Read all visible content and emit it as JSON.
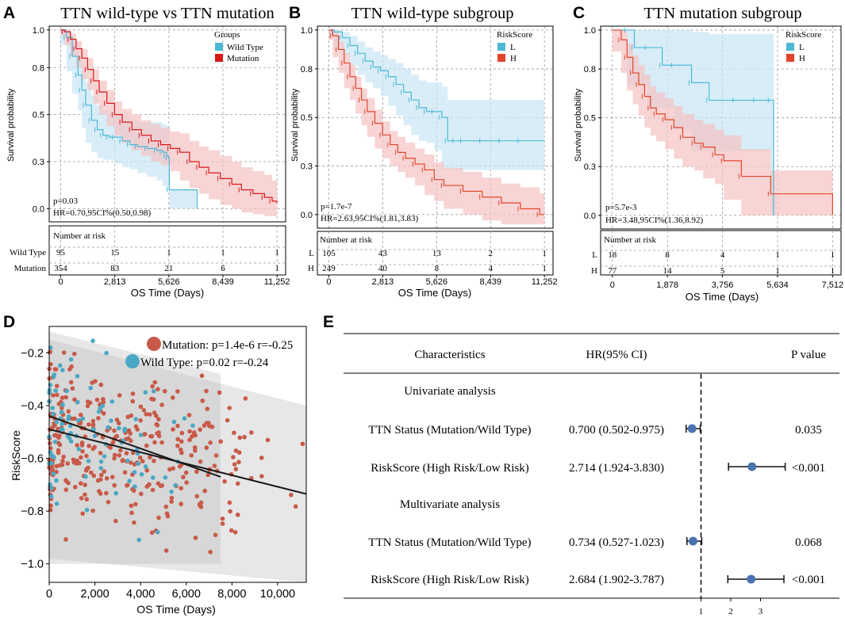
{
  "colors": {
    "wild": "#4db8d6",
    "mutation": "#d71a1a",
    "high": "#e0452c",
    "band_blue": "#c7e6f3",
    "band_red": "#f5c2c2",
    "scatter_red": "#c85a49",
    "scatter_blue": "#4ba8c4",
    "forest_dot": "#4a72b0"
  },
  "chart_data": [
    {
      "panel": "A",
      "type": "line",
      "title": "TTN wild-type vs TTN mutation",
      "ylabel": "Survival probability",
      "xlabel": "OS Time (Days)",
      "yticks": [
        "1.0",
        "0.8",
        "0.5",
        "0.3",
        "0.0"
      ],
      "ytick_values": [
        1.0,
        0.8,
        0.55,
        0.3,
        0.05
      ],
      "xticks": [
        "0",
        "2,813",
        "5,626",
        "8,439",
        "11,252"
      ],
      "xtick_values": [
        0,
        2813,
        5626,
        8439,
        11252
      ],
      "xlim": [
        -600,
        11700
      ],
      "ylim": [
        -0.02,
        1.02
      ],
      "legend_title": "Groups",
      "annot_p": "p=0.03",
      "annot_hr": "HR=0.70,95CI%(0.50,0.98)",
      "risk_title": "Number at risk",
      "series": [
        {
          "name": "Wild Type",
          "risk_label": "Wild Type",
          "color_key": "wild",
          "band_key": "band_blue",
          "x": [
            0,
            300,
            600,
            900,
            1100,
            1300,
            1600,
            1900,
            2200,
            2500,
            2800,
            3200,
            3600,
            4000,
            4500,
            5000,
            5300,
            5500,
            5600,
            5650,
            7100
          ],
          "y": [
            1.0,
            0.96,
            0.86,
            0.76,
            0.68,
            0.6,
            0.52,
            0.47,
            0.44,
            0.43,
            0.43,
            0.41,
            0.39,
            0.38,
            0.37,
            0.36,
            0.35,
            0.33,
            0.32,
            0.15,
            0.05
          ],
          "lo": [
            1.0,
            0.92,
            0.78,
            0.66,
            0.57,
            0.48,
            0.4,
            0.35,
            0.32,
            0.31,
            0.31,
            0.29,
            0.27,
            0.26,
            0.24,
            0.22,
            0.2,
            0.17,
            0.15,
            0.15,
            0.05
          ],
          "hi": [
            1.0,
            0.99,
            0.93,
            0.86,
            0.79,
            0.72,
            0.65,
            0.6,
            0.57,
            0.56,
            0.56,
            0.54,
            0.52,
            0.51,
            0.51,
            0.51,
            0.5,
            0.49,
            0.48,
            0.15,
            0.05
          ],
          "risk": [
            "95",
            "15",
            "1",
            "1",
            "1"
          ]
        },
        {
          "name": "Mutation",
          "risk_label": "Mutation",
          "color_key": "mutation",
          "band_key": "band_red",
          "x": [
            0,
            200,
            500,
            800,
            1100,
            1400,
            1700,
            2000,
            2400,
            2800,
            3200,
            3700,
            4200,
            4700,
            5200,
            5700,
            6200,
            6700,
            7200,
            7700,
            8300,
            8900,
            9400,
            10000,
            10600,
            11000,
            11252
          ],
          "y": [
            1.0,
            0.99,
            0.95,
            0.9,
            0.85,
            0.79,
            0.73,
            0.67,
            0.61,
            0.55,
            0.51,
            0.47,
            0.44,
            0.41,
            0.39,
            0.37,
            0.35,
            0.3,
            0.27,
            0.24,
            0.21,
            0.18,
            0.15,
            0.13,
            0.11,
            0.09,
            0.08
          ],
          "lo": [
            1.0,
            0.97,
            0.92,
            0.86,
            0.8,
            0.74,
            0.68,
            0.61,
            0.55,
            0.49,
            0.44,
            0.4,
            0.36,
            0.33,
            0.3,
            0.28,
            0.25,
            0.2,
            0.16,
            0.13,
            0.1,
            0.07,
            0.05,
            0.03,
            0.02,
            0.01,
            0.01
          ],
          "hi": [
            1.0,
            1.0,
            0.98,
            0.94,
            0.9,
            0.85,
            0.79,
            0.73,
            0.68,
            0.62,
            0.58,
            0.55,
            0.52,
            0.5,
            0.48,
            0.46,
            0.45,
            0.41,
            0.38,
            0.36,
            0.33,
            0.3,
            0.27,
            0.25,
            0.23,
            0.2,
            0.19
          ],
          "risk": [
            "354",
            "83",
            "21",
            "6",
            "1"
          ]
        }
      ]
    },
    {
      "panel": "B",
      "type": "line",
      "title": "TTN wild-type subgroup",
      "ylabel": "Survival probability",
      "xlabel": "OS Time (Days)",
      "yticks": [
        "1.0",
        "0.8",
        "0.5",
        "0.3",
        "0.0"
      ],
      "ytick_values": [
        1.0,
        0.8,
        0.55,
        0.3,
        0.05
      ],
      "xticks": [
        "0",
        "2,813",
        "5,626",
        "8,439",
        "11,252"
      ],
      "xtick_values": [
        0,
        2813,
        5626,
        8439,
        11252
      ],
      "xlim": [
        -600,
        11700
      ],
      "ylim": [
        -0.02,
        1.02
      ],
      "legend_title": "RiskScore",
      "annot_p": "p=1.7e-7",
      "annot_hr": "HR=2.63,95CI%(1.81,3.83)",
      "risk_title": "Number at risk",
      "series": [
        {
          "name": "L",
          "risk_label": "L",
          "color_key": "wild",
          "band_key": "band_blue",
          "x": [
            0,
            300,
            700,
            1100,
            1500,
            1900,
            2300,
            2700,
            3100,
            3500,
            3900,
            4300,
            4700,
            5100,
            5500,
            5900,
            6200,
            6600,
            7000,
            8000,
            9000,
            10000,
            11252
          ],
          "y": [
            1.0,
            0.99,
            0.96,
            0.92,
            0.88,
            0.84,
            0.81,
            0.79,
            0.76,
            0.72,
            0.68,
            0.64,
            0.6,
            0.58,
            0.58,
            0.55,
            0.43,
            0.43,
            0.43,
            0.43,
            0.43,
            0.43,
            0.43
          ],
          "lo": [
            1.0,
            0.97,
            0.92,
            0.87,
            0.82,
            0.77,
            0.73,
            0.7,
            0.66,
            0.61,
            0.56,
            0.51,
            0.46,
            0.43,
            0.42,
            0.38,
            0.28,
            0.28,
            0.28,
            0.28,
            0.28,
            0.28,
            0.28
          ],
          "hi": [
            1.0,
            1.0,
            0.99,
            0.97,
            0.94,
            0.91,
            0.89,
            0.87,
            0.85,
            0.83,
            0.8,
            0.77,
            0.74,
            0.73,
            0.73,
            0.71,
            0.64,
            0.64,
            0.64,
            0.64,
            0.64,
            0.64,
            0.64
          ],
          "risk": [
            "105",
            "43",
            "13",
            "2",
            "1"
          ]
        },
        {
          "name": "H",
          "risk_label": "H",
          "color_key": "high",
          "band_key": "band_red",
          "x": [
            0,
            200,
            500,
            800,
            1100,
            1400,
            1700,
            2000,
            2400,
            2800,
            3200,
            3600,
            4000,
            4500,
            5000,
            5500,
            6000,
            7000,
            8000,
            9000,
            10000,
            11000,
            11252
          ],
          "y": [
            1.0,
            0.97,
            0.9,
            0.83,
            0.76,
            0.7,
            0.64,
            0.58,
            0.52,
            0.46,
            0.41,
            0.37,
            0.34,
            0.31,
            0.28,
            0.23,
            0.2,
            0.17,
            0.14,
            0.11,
            0.08,
            0.05,
            0.05
          ],
          "lo": [
            1.0,
            0.95,
            0.86,
            0.78,
            0.7,
            0.64,
            0.57,
            0.51,
            0.45,
            0.39,
            0.34,
            0.3,
            0.27,
            0.24,
            0.2,
            0.15,
            0.12,
            0.08,
            0.05,
            0.02,
            0.0,
            0.0,
            0.0
          ],
          "hi": [
            1.0,
            0.99,
            0.94,
            0.88,
            0.82,
            0.76,
            0.7,
            0.65,
            0.59,
            0.53,
            0.48,
            0.45,
            0.42,
            0.39,
            0.36,
            0.32,
            0.29,
            0.27,
            0.24,
            0.21,
            0.19,
            0.16,
            0.15
          ],
          "risk": [
            "249",
            "40",
            "8",
            "4",
            "1"
          ]
        }
      ]
    },
    {
      "panel": "C",
      "type": "line",
      "title": "TTN mutation subgroup",
      "ylabel": "Survival probability",
      "xlabel": "OS Time (Days)",
      "yticks": [
        "1.0",
        "0.8",
        "0.5",
        "0.3",
        "0.0"
      ],
      "ytick_values": [
        1.0,
        0.8,
        0.55,
        0.3,
        0.05
      ],
      "xticks": [
        "0",
        "1,878",
        "3,756",
        "5,634",
        "7,512"
      ],
      "xtick_values": [
        0,
        1878,
        3756,
        5634,
        7512
      ],
      "xlim": [
        -400,
        7800
      ],
      "ylim": [
        -0.02,
        1.02
      ],
      "legend_title": "RiskScore",
      "annot_p": "p=5.7e-3",
      "annot_hr": "HR=3.48,95CI%(1.36,8.92)",
      "risk_title": "Number at risk",
      "series": [
        {
          "name": "L",
          "risk_label": "L",
          "color_key": "wild",
          "band_key": "band_blue",
          "x": [
            0,
            500,
            750,
            1200,
            1700,
            2100,
            2700,
            3300,
            4200,
            4900,
            5400,
            5500
          ],
          "y": [
            1.0,
            1.0,
            0.91,
            0.91,
            0.82,
            0.82,
            0.73,
            0.64,
            0.64,
            0.64,
            0.64,
            0.05
          ],
          "lo": [
            1.0,
            1.0,
            0.72,
            0.72,
            0.6,
            0.6,
            0.49,
            0.38,
            0.38,
            0.38,
            0.38,
            0.05
          ],
          "hi": [
            1.0,
            1.0,
            1.0,
            1.0,
            1.0,
            1.0,
            0.99,
            0.98,
            0.98,
            0.98,
            0.98,
            0.05
          ],
          "risk": [
            "18",
            "8",
            "4",
            "1",
            "1"
          ]
        },
        {
          "name": "H",
          "risk_label": "H",
          "color_key": "high",
          "band_key": "band_red",
          "x": [
            0,
            300,
            500,
            700,
            900,
            1100,
            1300,
            1500,
            1800,
            2100,
            2400,
            2800,
            3100,
            3500,
            3800,
            4400,
            5400,
            7512
          ],
          "y": [
            1.0,
            0.95,
            0.86,
            0.78,
            0.72,
            0.66,
            0.6,
            0.57,
            0.54,
            0.5,
            0.45,
            0.42,
            0.4,
            0.36,
            0.33,
            0.25,
            0.16,
            0.05
          ],
          "lo": [
            1.0,
            0.89,
            0.78,
            0.69,
            0.62,
            0.56,
            0.5,
            0.46,
            0.43,
            0.39,
            0.34,
            0.3,
            0.28,
            0.24,
            0.21,
            0.13,
            0.05,
            0.05
          ],
          "hi": [
            1.0,
            1.0,
            0.93,
            0.87,
            0.82,
            0.77,
            0.71,
            0.68,
            0.65,
            0.61,
            0.57,
            0.54,
            0.52,
            0.49,
            0.46,
            0.39,
            0.28,
            0.05
          ],
          "risk": [
            "77",
            "14",
            "5",
            "1",
            "1"
          ]
        }
      ]
    },
    {
      "panel": "D",
      "type": "scatter",
      "xlabel": "OS Time (Days)",
      "ylabel": "RiskScore",
      "xticks": [
        "0",
        "2,000",
        "4,000",
        "6,000",
        "8,000",
        "10,000"
      ],
      "xtick_values": [
        0,
        2000,
        4000,
        6000,
        8000,
        10000
      ],
      "yticks": [
        "−0.2",
        "−0.4",
        "−0.6",
        "−0.8",
        "−1.0"
      ],
      "ytick_values": [
        -0.2,
        -0.4,
        -0.6,
        -0.8,
        -1.0
      ],
      "xlim": [
        0,
        11252
      ],
      "ylim": [
        -1.07,
        -0.1
      ],
      "series": [
        {
          "name": "Mutation",
          "legend": "Mutation: p=1.4e-6 r=-0.25",
          "color_key": "scatter_red",
          "fit": {
            "x0": 0,
            "y0": -0.49,
            "x1": 11252,
            "y1": -0.735
          },
          "band": {
            "x0": 0,
            "lo0": -0.98,
            "hi0": -0.15,
            "x1": 11252,
            "lo1": -1.07,
            "hi1": -0.4
          },
          "n": 354
        },
        {
          "name": "Wild Type",
          "legend": "Wild Type: p=0.02 r=-0.24",
          "color_key": "scatter_blue",
          "fit": {
            "x0": 0,
            "y0": -0.44,
            "x1": 7500,
            "y1": -0.67
          },
          "band": {
            "x0": 0,
            "lo0": -1.0,
            "hi0": -0.12,
            "x1": 7500,
            "lo1": -1.0,
            "hi1": -0.28
          },
          "n": 95
        }
      ]
    },
    {
      "panel": "E",
      "type": "table",
      "columns": [
        "Characteristics",
        "HR(95% CI)",
        "P value"
      ],
      "sections": [
        {
          "title": "Univariate analysis",
          "rows": [
            {
              "name": "TTN Status (Mutation/Wild Type)",
              "hr_text": "0.700 (0.502-0.975)",
              "hr": 0.7,
              "lo": 0.502,
              "hi": 0.975,
              "p": "0.035"
            },
            {
              "name": "RiskScore (High Risk/Low Risk)",
              "hr_text": "2.714 (1.924-3.830)",
              "hr": 2.714,
              "lo": 1.924,
              "hi": 3.83,
              "p": "<0.001"
            }
          ]
        },
        {
          "title": "Multivariate analysis",
          "rows": [
            {
              "name": "TTN Status (Mutation/Wild Type)",
              "hr_text": "0.734 (0.527-1.023)",
              "hr": 0.734,
              "lo": 0.527,
              "hi": 1.023,
              "p": "0.068"
            },
            {
              "name": "RiskScore (High Risk/Low Risk)",
              "hr_text": "2.684 (1.902-3.787)",
              "hr": 2.684,
              "lo": 1.902,
              "hi": 3.787,
              "p": "<0.001"
            }
          ]
        }
      ],
      "xticks": [
        "1",
        "2",
        "3"
      ],
      "xtick_values": [
        1,
        2,
        3
      ],
      "reference_line": 1
    }
  ]
}
